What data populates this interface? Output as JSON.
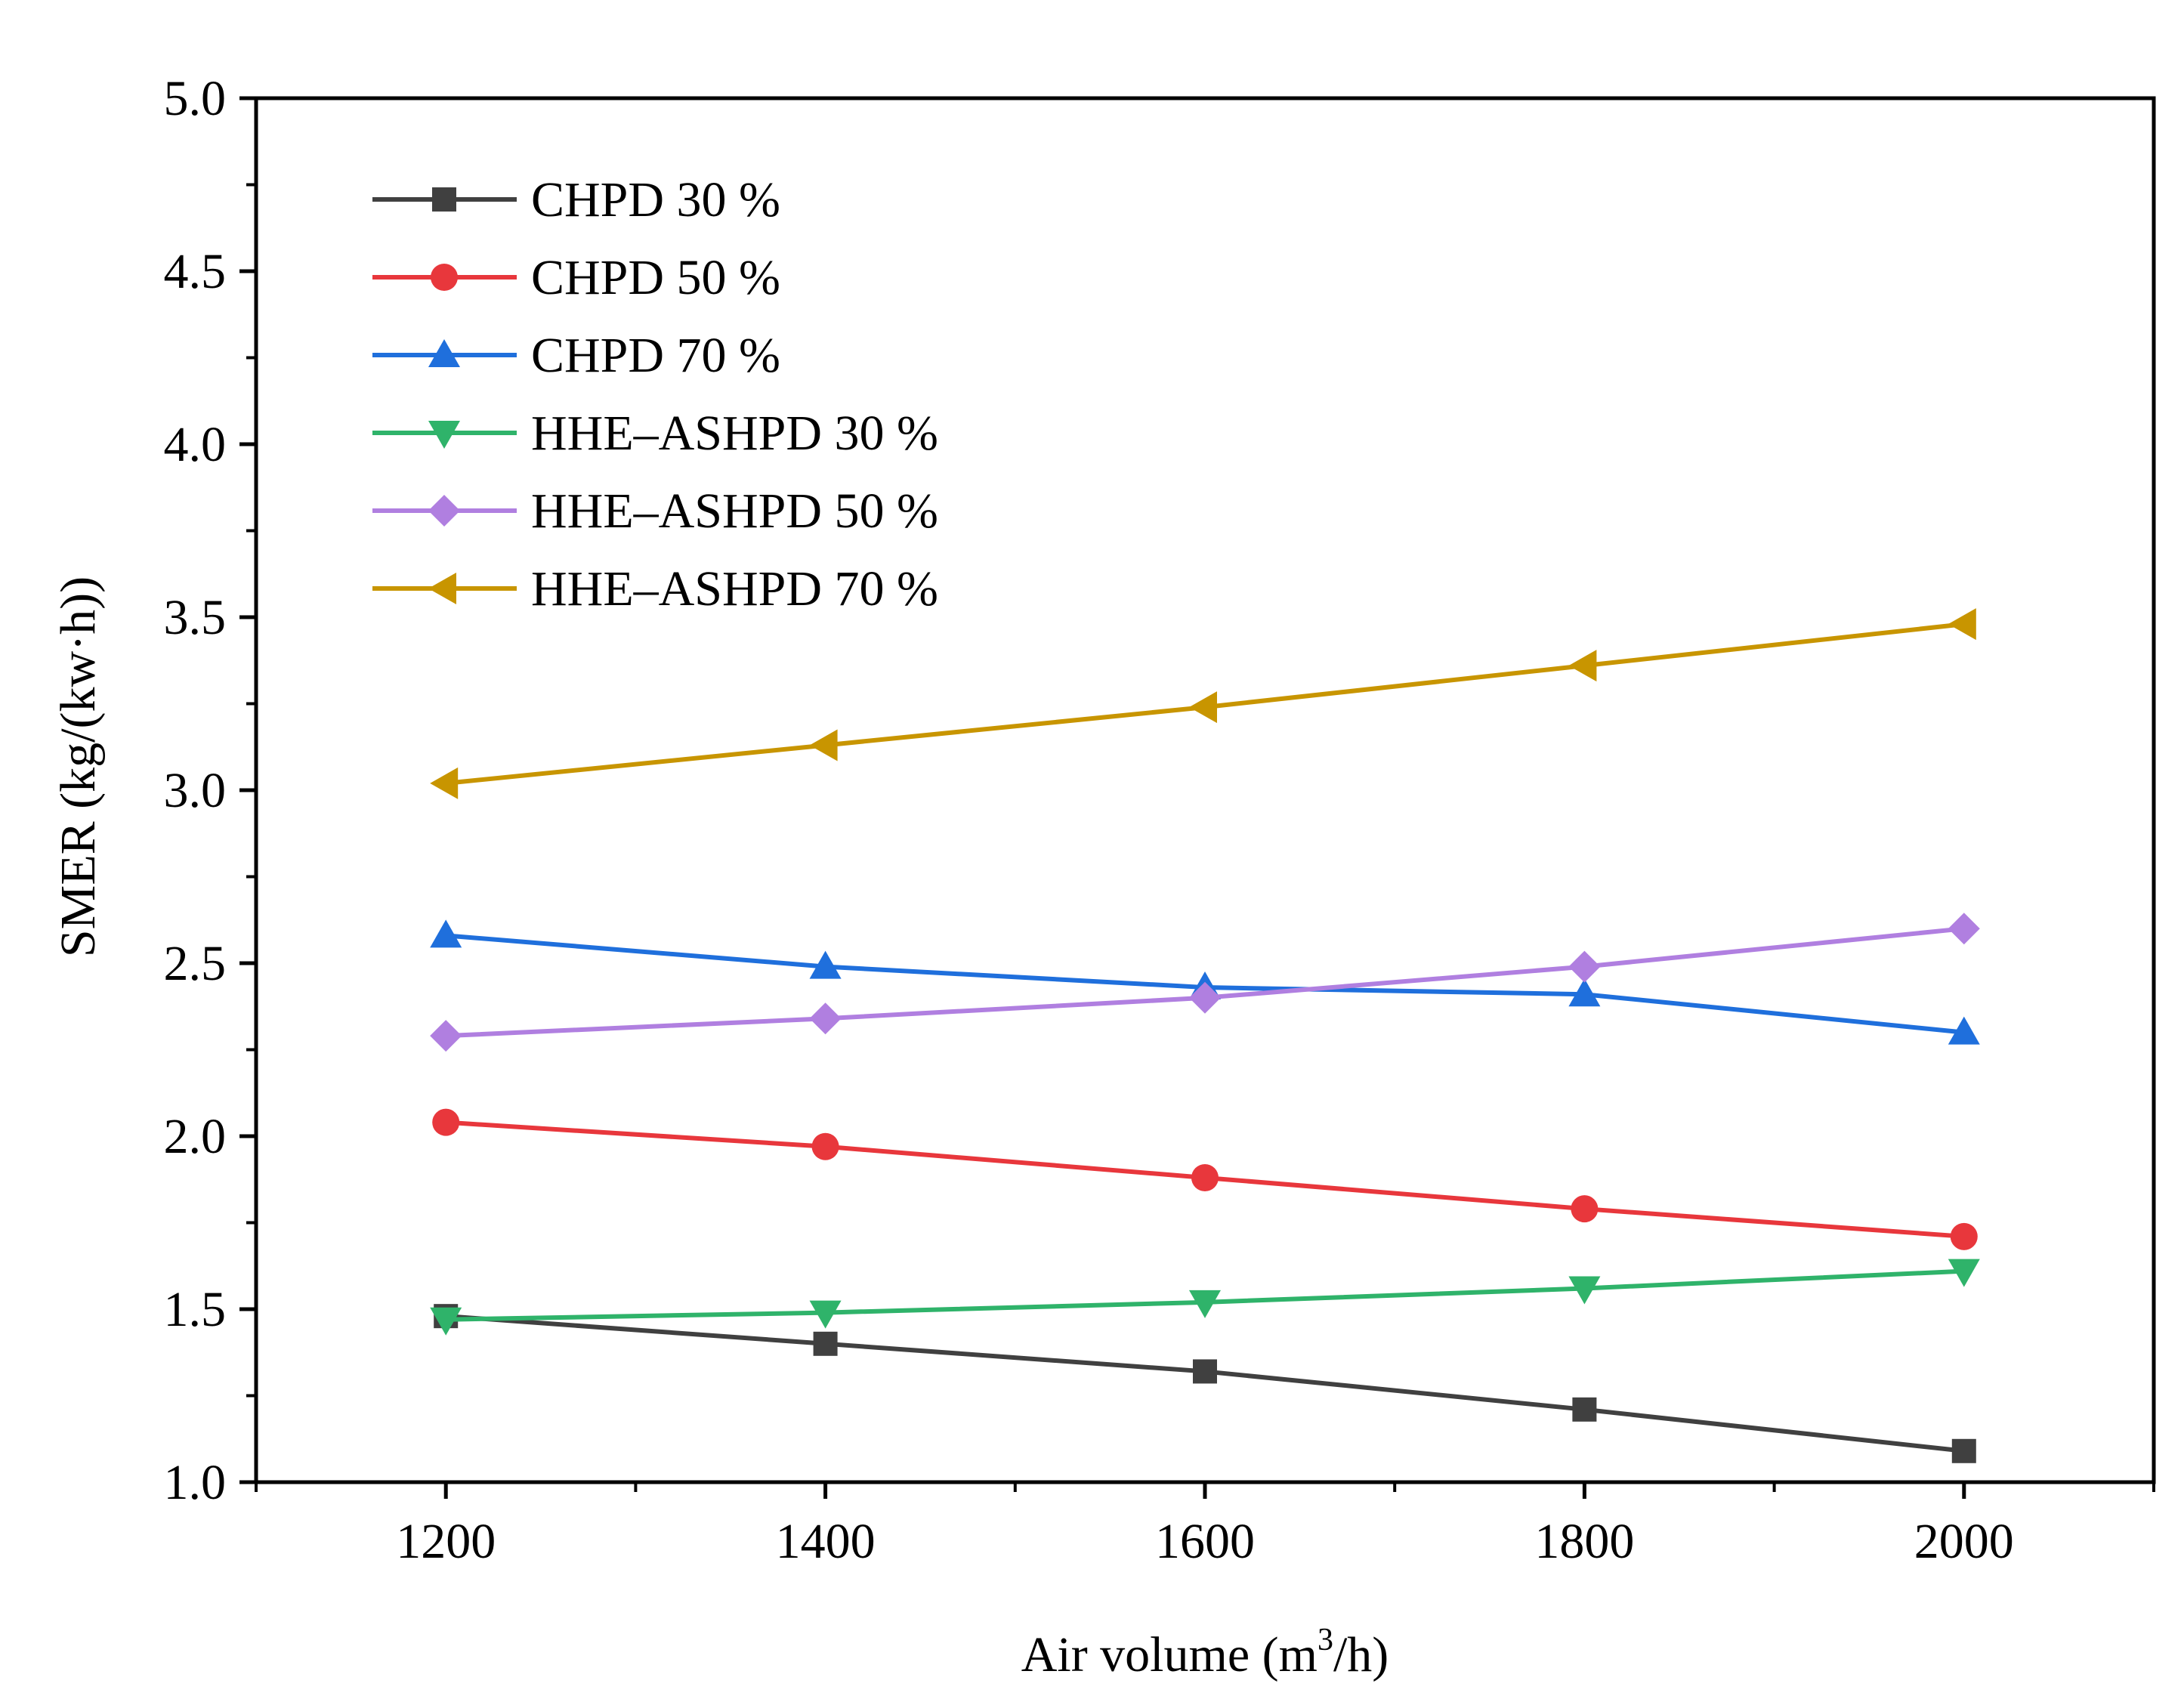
{
  "chart_data": {
    "type": "line",
    "title": "",
    "xlabel": "Air volume (m",
    "xlabel_sup": "3",
    "xlabel_tail": "/h)",
    "ylabel": "SMER (kg/(kw·h))",
    "xlim": [
      1100,
      2100
    ],
    "ylim": [
      1.0,
      5.0
    ],
    "x": [
      1200,
      1400,
      1600,
      1800,
      2000
    ],
    "xticks": [
      "1200",
      "1400",
      "1600",
      "1800",
      "2000"
    ],
    "yticks": [
      "1.0",
      "1.5",
      "2.0",
      "2.5",
      "3.0",
      "3.5",
      "4.0",
      "4.5",
      "5.0"
    ],
    "legend_position": "top-left",
    "series": [
      {
        "name": "CHPD 30 %",
        "values": [
          1.48,
          1.4,
          1.32,
          1.21,
          1.09
        ],
        "color": "#404040",
        "marker": "square"
      },
      {
        "name": "CHPD 50 %",
        "values": [
          2.04,
          1.97,
          1.88,
          1.79,
          1.71
        ],
        "color": "#e8373c",
        "marker": "circle"
      },
      {
        "name": "CHPD 70 %",
        "values": [
          2.58,
          2.49,
          2.43,
          2.41,
          2.3
        ],
        "color": "#1f6fdc",
        "marker": "triangle-up"
      },
      {
        "name": "HHE–ASHPD 30 %",
        "values": [
          1.47,
          1.49,
          1.52,
          1.56,
          1.61
        ],
        "color": "#2fb36a",
        "marker": "triangle-down"
      },
      {
        "name": "HHE–ASHPD 50 %",
        "values": [
          2.29,
          2.34,
          2.4,
          2.49,
          2.6
        ],
        "color": "#b07fe0",
        "marker": "diamond"
      },
      {
        "name": "HHE–ASHPD 70 %",
        "values": [
          3.02,
          3.13,
          3.24,
          3.36,
          3.48
        ],
        "color": "#c89500",
        "marker": "triangle-left"
      }
    ]
  }
}
